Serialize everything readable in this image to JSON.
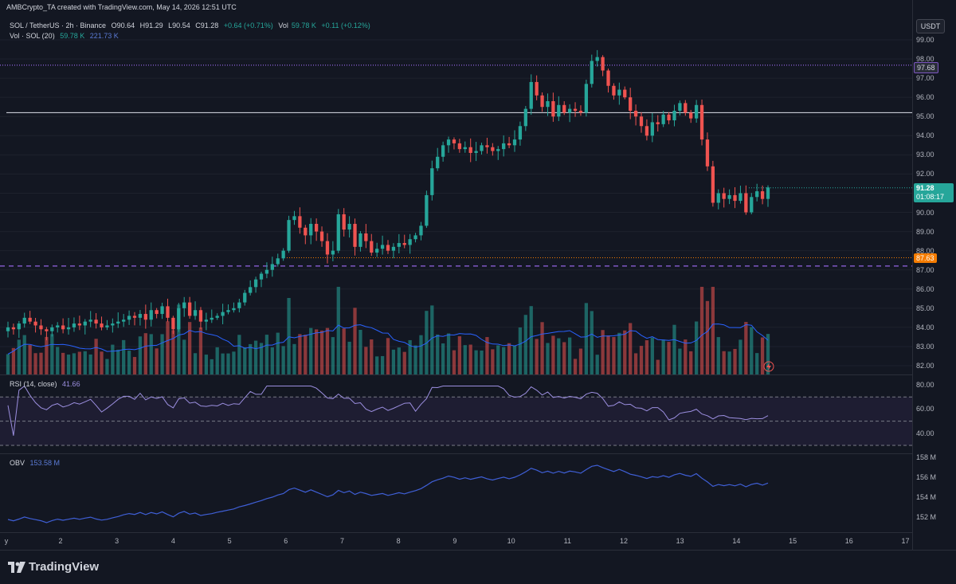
{
  "header": {
    "author_line": "AMBCrypto_TA created with TradingView.com, May 14, 2026 12:51 UTC"
  },
  "legend": {
    "symbol": "SOL / TetherUS · 2h · Binance",
    "open": "O90.64",
    "high": "H91.29",
    "low": "L90.54",
    "close": "C91.28",
    "change": "+0.64 (+0.71%)",
    "vol_label": "Vol",
    "vol_value": "59.78 K",
    "vol_change": "+0.11 (+0.12%)",
    "vol_study": "Vol · SOL (20)",
    "vol_study_v1": "59.78 K",
    "vol_study_v2": "221.73 K"
  },
  "rsi": {
    "label": "RSI (14, close)",
    "value": "41.66"
  },
  "obv": {
    "label": "OBV",
    "value": "153.58 M"
  },
  "price_axis": {
    "currency": "USDT",
    "ticks": [
      "99.00",
      "98.00",
      "97.00",
      "96.00",
      "95.00",
      "94.00",
      "93.00",
      "92.00",
      "91.00",
      "90.00",
      "89.00",
      "88.00",
      "87.00",
      "86.00",
      "85.00",
      "84.00",
      "83.00",
      "82.00"
    ],
    "tag_resistance": "97.68",
    "tag_price": "91.28",
    "tag_countdown": "01:08:17",
    "tag_support": "87.63"
  },
  "rsi_axis": {
    "ticks": [
      "80.00",
      "60.00",
      "40.00"
    ]
  },
  "obv_axis": {
    "ticks": [
      "158 M",
      "156 M",
      "154 M",
      "152 M"
    ]
  },
  "time_axis": {
    "labels": [
      "y",
      "2",
      "3",
      "4",
      "5",
      "6",
      "7",
      "8",
      "9",
      "10",
      "11",
      "12",
      "13",
      "14",
      "15",
      "16",
      "17"
    ]
  },
  "footer": {
    "brand": "TradingView"
  },
  "colors": {
    "up": "#26a69a",
    "down": "#ef5350",
    "rsi": "#9c8fe0",
    "obv": "#3f5fd6",
    "purple_line": "#7e57c2",
    "orange": "#f57c00"
  },
  "chart_data": {
    "type": "candlestick",
    "symbol": "SOL / TetherUS",
    "interval": "2h",
    "levels": {
      "resistance_dotted": 97.68,
      "white_line": 95.2,
      "dashed_support": 87.2,
      "last_price": 91.28,
      "orange_marker": 87.63
    },
    "price_path": [
      84.0,
      83.9,
      84.2,
      84.5,
      84.3,
      84.1,
      83.9,
      83.8,
      84.0,
      84.1,
      83.9,
      84.0,
      84.2,
      84.1,
      84.3,
      84.4,
      84.2,
      84.0,
      84.1,
      84.2,
      84.3,
      84.4,
      84.6,
      84.5,
      84.7,
      84.4,
      84.9,
      84.7,
      85.1,
      84.5,
      83.9,
      85.0,
      85.3,
      84.6,
      84.9,
      84.3,
      84.4,
      84.5,
      84.6,
      84.8,
      84.9,
      85.0,
      85.3,
      85.8,
      86.1,
      86.5,
      86.8,
      87.0,
      87.3,
      87.6,
      88.0,
      89.6,
      89.8,
      89.2,
      88.8,
      89.4,
      89.0,
      88.5,
      87.8,
      88.0,
      89.9,
      89.1,
      89.4,
      88.2,
      88.9,
      88.5,
      87.9,
      88.1,
      88.3,
      88.0,
      88.2,
      88.4,
      88.3,
      88.6,
      88.8,
      89.3,
      90.9,
      92.3,
      92.9,
      93.5,
      93.8,
      93.6,
      93.3,
      93.4,
      93.1,
      93.2,
      93.5,
      93.4,
      93.2,
      93.3,
      93.6,
      93.5,
      93.8,
      94.5,
      95.4,
      96.8,
      96.1,
      95.5,
      95.8,
      95.0,
      95.6,
      95.2,
      95.4,
      95.3,
      95.2,
      96.7,
      97.9,
      98.1,
      97.4,
      96.6,
      96.1,
      96.4,
      96.0,
      95.3,
      95.0,
      94.5,
      94.0,
      94.7,
      94.6,
      95.1,
      94.8,
      95.3,
      95.7,
      95.2,
      94.9,
      95.6,
      93.8,
      92.4,
      90.5,
      91.0,
      90.7,
      90.9,
      90.6,
      91.0,
      90.0,
      90.8,
      91.1,
      90.7,
      91.3
    ],
    "rsi_range": [
      30,
      80
    ],
    "obv_range": [
      "152 M",
      "158 M"
    ]
  }
}
